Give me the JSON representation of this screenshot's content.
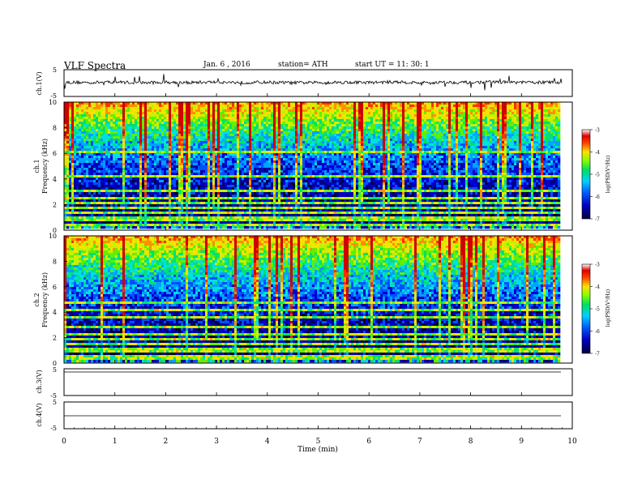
{
  "header": {
    "title": "VLF  Spectra",
    "date": "Jan. 6  , 2016",
    "station": "station= ATH",
    "start": "start  UT  =   11: 30: 1"
  },
  "chart_data": [
    {
      "type": "line",
      "panel": "ch1-waveform",
      "ylabel": "ch.1(V)",
      "yticks": [
        "5",
        "-5"
      ],
      "ylim": [
        -5,
        5
      ],
      "x": [
        0,
        0.5,
        1,
        1.5,
        2,
        2.5,
        3,
        3.5,
        4,
        4.5,
        5,
        5.5,
        6,
        6.5,
        7,
        7.5,
        8,
        8.5,
        9,
        9.5,
        9.8
      ],
      "values": [
        0.3,
        0.2,
        0.4,
        0.1,
        0.3,
        0.2,
        0.4,
        0.2,
        0.3,
        0.1,
        0.2,
        0.3,
        0.2,
        0.4,
        0.1,
        0.3,
        0.2,
        0.4,
        0.2,
        0.3,
        0.2
      ]
    },
    {
      "type": "heatmap",
      "panel": "ch1-spectrogram",
      "ylabel": "ch.1",
      "ylabel2": "Frequency  (kHz)",
      "yticks": [
        "10",
        "8",
        "6",
        "4",
        "2",
        "0"
      ],
      "ylim": [
        0,
        10
      ],
      "xlim": [
        0,
        9.8
      ],
      "colorbar": {
        "label": "log(PSD(V²/Hz)",
        "ticks": [
          "-3",
          "-4",
          "-5",
          "-6",
          "-7"
        ],
        "range": [
          -7,
          -3
        ]
      },
      "bands_khz": [
        0.1,
        0.3,
        0.6,
        0.9,
        1.2,
        1.6,
        2.0,
        2.4,
        3.0,
        4.1,
        6.0
      ]
    },
    {
      "type": "heatmap",
      "panel": "ch2-spectrogram",
      "ylabel": "ch.2",
      "ylabel2": "Frequency  (kHz)",
      "yticks": [
        "10",
        "8",
        "6",
        "4",
        "2",
        "0"
      ],
      "ylim": [
        0,
        10
      ],
      "xlim": [
        0,
        9.8
      ],
      "colorbar": {
        "label": "log(PSD(V²/Hz)",
        "ticks": [
          "-3",
          "-4",
          "-5",
          "-6",
          "-7"
        ],
        "range": [
          -7,
          -3
        ]
      },
      "bands_khz": [
        0.2,
        0.5,
        0.8,
        1.1,
        1.4,
        1.8,
        2.3,
        2.8,
        3.5,
        4.1,
        4.8
      ]
    },
    {
      "type": "line",
      "panel": "ch3-waveform",
      "ylabel": "ch.3(V)",
      "yticks": [
        "5",
        "-5"
      ],
      "ylim": [
        -5,
        5
      ],
      "x": [
        0,
        9.8
      ],
      "values": [
        5,
        5
      ]
    },
    {
      "type": "line",
      "panel": "ch4-waveform",
      "ylabel": "ch.4(V)",
      "yticks": [
        "5",
        "-5"
      ],
      "ylim": [
        -5,
        5
      ],
      "x": [
        0,
        9.8
      ],
      "values": [
        0,
        0
      ]
    }
  ],
  "xaxis": {
    "label": "Time  (min)",
    "ticks": [
      "0",
      "1",
      "2",
      "3",
      "4",
      "5",
      "6",
      "7",
      "8",
      "9",
      "10"
    ],
    "xlim": [
      0,
      10
    ]
  }
}
